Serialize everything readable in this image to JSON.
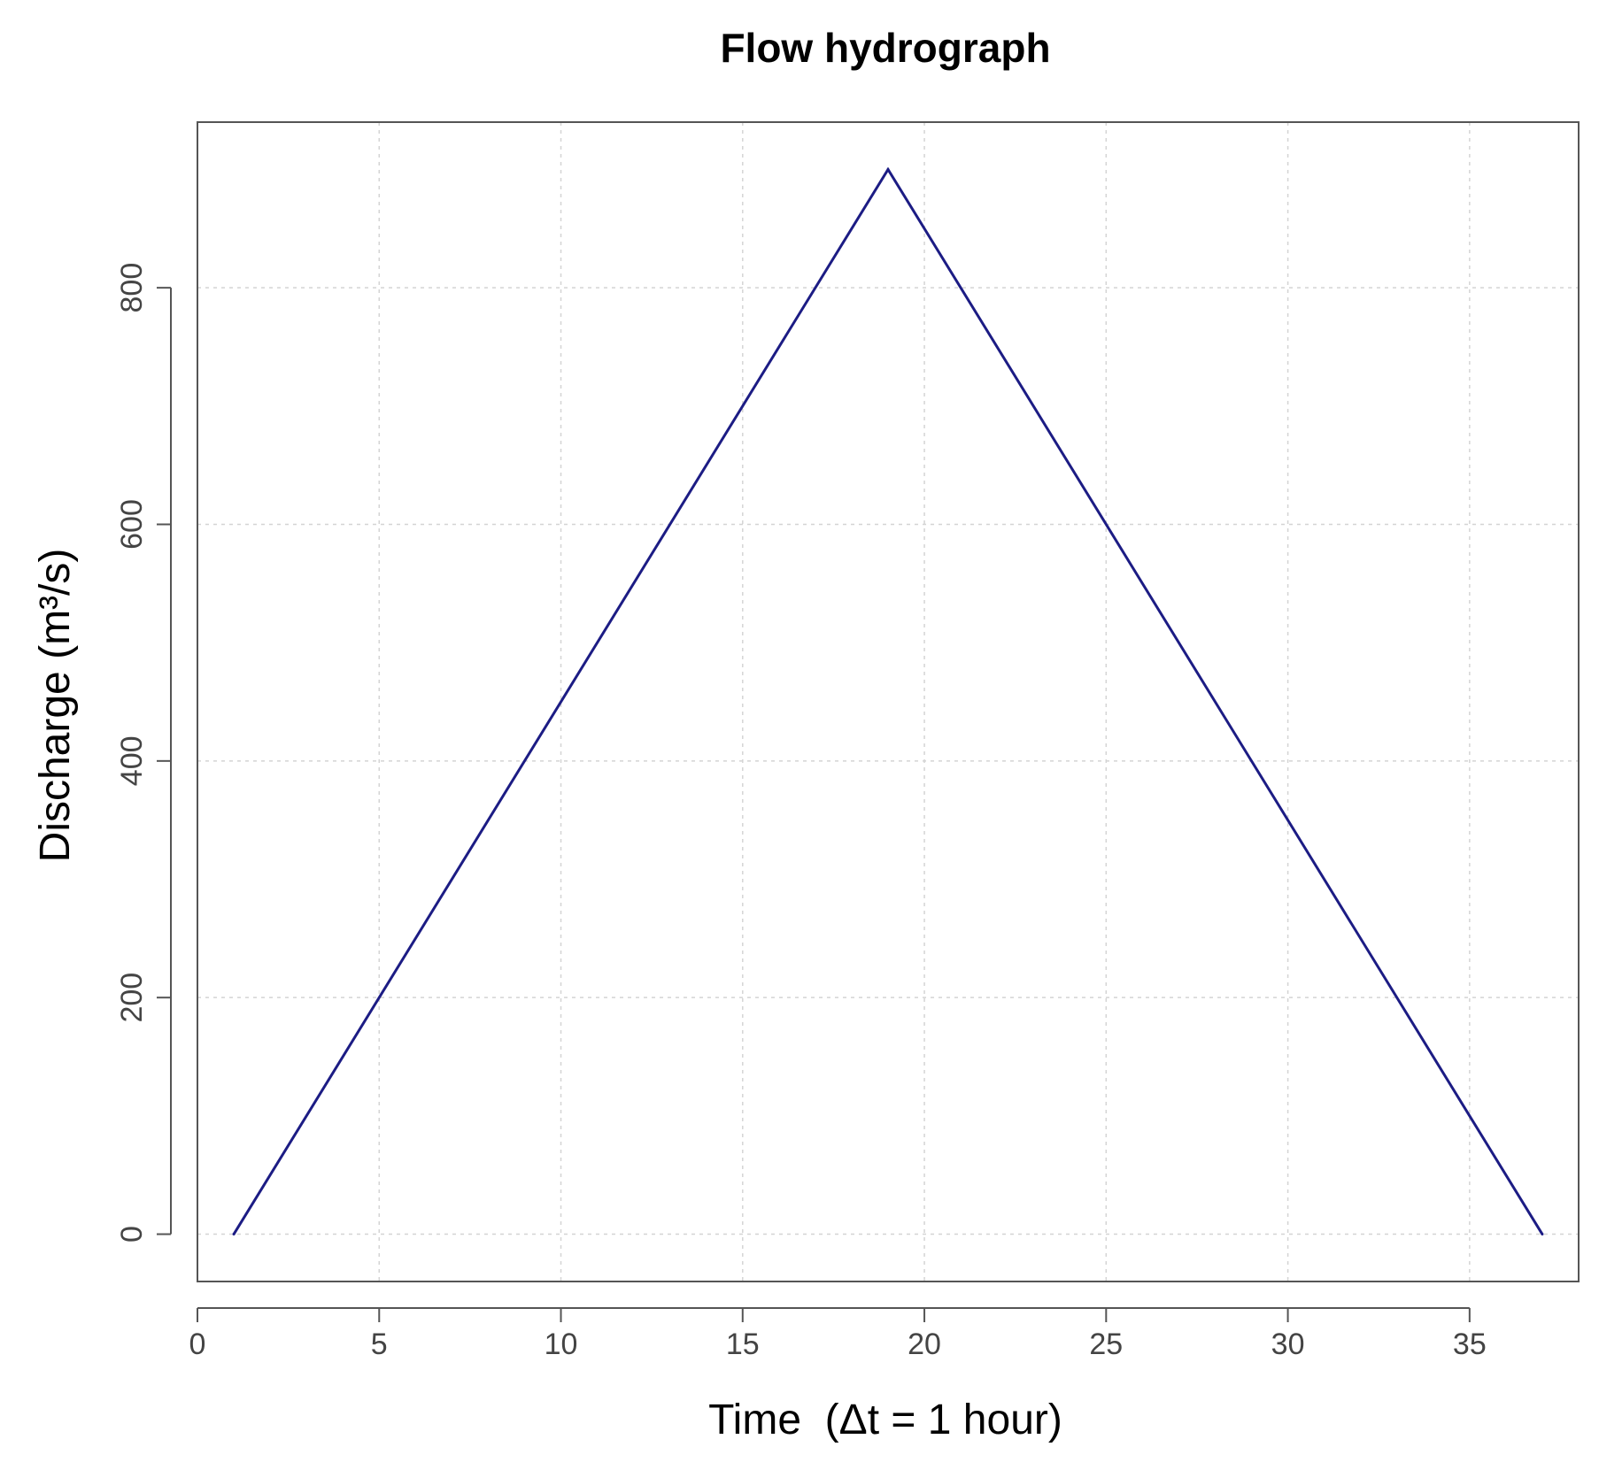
{
  "chart_data": {
    "type": "line",
    "title": "Flow hydrograph",
    "xlabel": "Time  (Δt = 1 hour)",
    "ylabel": "Discharge (m³/s)",
    "xlim": [
      0,
      38
    ],
    "ylim": [
      -40,
      940
    ],
    "x_ticks": [
      0,
      5,
      10,
      15,
      20,
      25,
      30,
      35
    ],
    "y_ticks": [
      0,
      200,
      400,
      600,
      800
    ],
    "grid": true,
    "series": [
      {
        "color": "#1c1c84",
        "x": [
          1,
          19,
          37
        ],
        "y": [
          0,
          900,
          0
        ]
      }
    ]
  }
}
